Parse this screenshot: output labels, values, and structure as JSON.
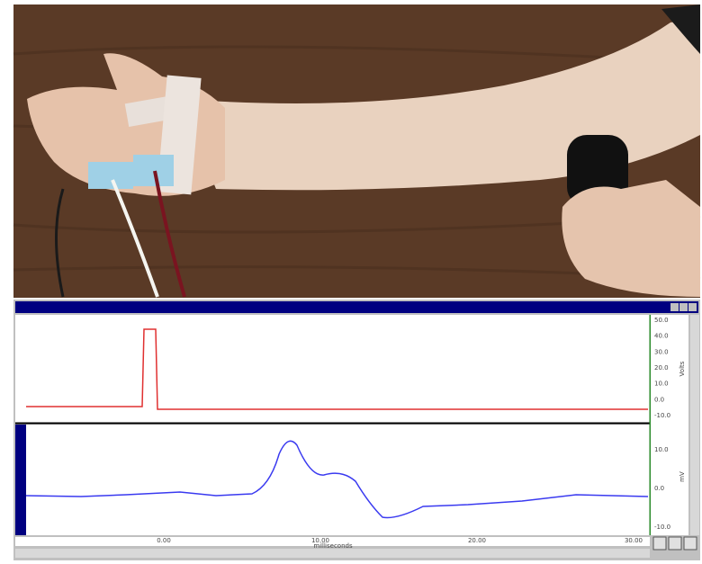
{
  "window": {
    "top_channel": {
      "unit": "Volts",
      "ticks": [
        "50.0",
        "40.0",
        "30.0",
        "20.0",
        "10.0",
        "0.0",
        "-10.0"
      ]
    },
    "bottom_channel": {
      "unit": "mV",
      "ticks": [
        "10.0",
        "0.0",
        "-10.0"
      ]
    },
    "time_axis": {
      "label": "milliseconds",
      "ticks": [
        "0.00",
        "10.00",
        "20.00",
        "30.00"
      ]
    }
  }
}
